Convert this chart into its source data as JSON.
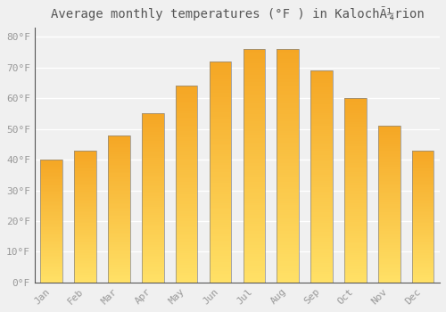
{
  "title": "Average monthly temperatures (°F ) in KalochÃ¼rion",
  "months": [
    "Jan",
    "Feb",
    "Mar",
    "Apr",
    "May",
    "Jun",
    "Jul",
    "Aug",
    "Sep",
    "Oct",
    "Nov",
    "Dec"
  ],
  "values": [
    40,
    43,
    48,
    55,
    64,
    72,
    76,
    76,
    69,
    60,
    51,
    43
  ],
  "bar_color_top": "#F5A623",
  "bar_color_bottom": "#FFE082",
  "bar_edge_color": "#888888",
  "yticks": [
    0,
    10,
    20,
    30,
    40,
    50,
    60,
    70,
    80
  ],
  "ylim": [
    0,
    83
  ],
  "background_color": "#f0f0f0",
  "grid_color": "#ffffff",
  "title_fontsize": 10,
  "tick_fontsize": 8
}
